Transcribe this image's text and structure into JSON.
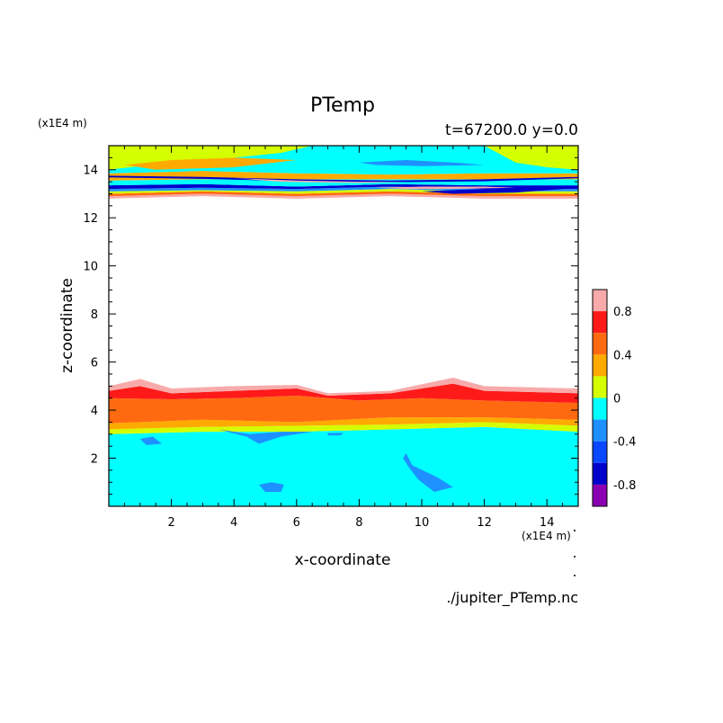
{
  "chart_data": {
    "type": "heatmap",
    "title": "PTemp",
    "subtitle": "t=67200.0 y=0.0",
    "xlabel": "x-coordinate",
    "ylabel": "z-coordinate",
    "x_unit": "(x1E4 m)",
    "y_unit": "(x1E4 m)",
    "file_label": "./jupiter_PTemp.nc",
    "xlim": [
      0,
      15
    ],
    "ylim": [
      0,
      15
    ],
    "x_ticks": [
      2,
      4,
      6,
      8,
      10,
      12,
      14
    ],
    "y_ticks": [
      2,
      4,
      6,
      8,
      10,
      12,
      14
    ],
    "colorbar": {
      "range": [
        -1.0,
        1.0
      ],
      "tick_values": [
        0.8,
        0.4,
        0,
        -0.4,
        -0.8
      ],
      "tick_labels": [
        "0.8",
        "0.4",
        "0",
        "-0.4",
        "-0.8"
      ],
      "levels": [
        {
          "min": 0.8,
          "max": 1.0,
          "color": "#f8aaaa"
        },
        {
          "min": 0.6,
          "max": 0.8,
          "color": "#ff1a1a"
        },
        {
          "min": 0.4,
          "max": 0.6,
          "color": "#ff6a10"
        },
        {
          "min": 0.2,
          "max": 0.4,
          "color": "#ffaa00"
        },
        {
          "min": 0.0,
          "max": 0.2,
          "color": "#d4ff00"
        },
        {
          "min": -0.2,
          "max": 0.0,
          "color": "#00ffff"
        },
        {
          "min": -0.4,
          "max": -0.2,
          "color": "#1e90ff"
        },
        {
          "min": -0.6,
          "max": -0.4,
          "color": "#0a48ff"
        },
        {
          "min": -0.8,
          "max": -0.6,
          "color": "#0000cc"
        },
        {
          "min": -1.0,
          "max": -0.8,
          "color": "#8b00b0"
        }
      ]
    },
    "bands": [
      {
        "level": -0.1,
        "bottom": [
          [
            0,
            0
          ],
          [
            15,
            0
          ]
        ],
        "top": [
          [
            0,
            3.0
          ],
          [
            3,
            3.1
          ],
          [
            6,
            3.1
          ],
          [
            9,
            3.2
          ],
          [
            12,
            3.3
          ],
          [
            15,
            3.1
          ]
        ]
      },
      {
        "level": 0.1,
        "bottom": [
          [
            0,
            3.0
          ],
          [
            3,
            3.1
          ],
          [
            6,
            3.1
          ],
          [
            9,
            3.2
          ],
          [
            12,
            3.3
          ],
          [
            15,
            3.1
          ]
        ],
        "top": [
          [
            0,
            3.2
          ],
          [
            3,
            3.3
          ],
          [
            6,
            3.35
          ],
          [
            9,
            3.4
          ],
          [
            12,
            3.5
          ],
          [
            15,
            3.35
          ]
        ]
      },
      {
        "level": 0.3,
        "bottom": [
          [
            0,
            3.2
          ],
          [
            3,
            3.3
          ],
          [
            6,
            3.35
          ],
          [
            9,
            3.4
          ],
          [
            12,
            3.5
          ],
          [
            15,
            3.35
          ]
        ],
        "top": [
          [
            0,
            3.45
          ],
          [
            3,
            3.6
          ],
          [
            6,
            3.5
          ],
          [
            9,
            3.7
          ],
          [
            12,
            3.7
          ],
          [
            15,
            3.6
          ]
        ]
      },
      {
        "level": 0.5,
        "bottom": [
          [
            0,
            3.45
          ],
          [
            3,
            3.6
          ],
          [
            6,
            3.5
          ],
          [
            9,
            3.7
          ],
          [
            12,
            3.7
          ],
          [
            15,
            3.6
          ]
        ],
        "top": [
          [
            0,
            4.5
          ],
          [
            2,
            4.45
          ],
          [
            4,
            4.5
          ],
          [
            6,
            4.6
          ],
          [
            8,
            4.4
          ],
          [
            10,
            4.5
          ],
          [
            12,
            4.4
          ],
          [
            15,
            4.3
          ]
        ]
      },
      {
        "level": 0.7,
        "bottom": [
          [
            0,
            4.5
          ],
          [
            2,
            4.45
          ],
          [
            4,
            4.5
          ],
          [
            6,
            4.6
          ],
          [
            8,
            4.4
          ],
          [
            10,
            4.5
          ],
          [
            12,
            4.4
          ],
          [
            15,
            4.3
          ]
        ],
        "top": [
          [
            0,
            4.8
          ],
          [
            1,
            5.0
          ],
          [
            2,
            4.7
          ],
          [
            4,
            4.8
          ],
          [
            6,
            4.9
          ],
          [
            7,
            4.6
          ],
          [
            9,
            4.7
          ],
          [
            11,
            5.1
          ],
          [
            12,
            4.8
          ],
          [
            15,
            4.7
          ]
        ]
      },
      {
        "level": 0.9,
        "bottom": [
          [
            0,
            4.8
          ],
          [
            1,
            5.0
          ],
          [
            2,
            4.7
          ],
          [
            4,
            4.8
          ],
          [
            6,
            4.9
          ],
          [
            7,
            4.6
          ],
          [
            9,
            4.7
          ],
          [
            11,
            5.1
          ],
          [
            12,
            4.8
          ],
          [
            15,
            4.7
          ]
        ],
        "top": [
          [
            0,
            5.0
          ],
          [
            1,
            5.3
          ],
          [
            2,
            4.9
          ],
          [
            4,
            5.0
          ],
          [
            6,
            5.05
          ],
          [
            7,
            4.7
          ],
          [
            9,
            4.8
          ],
          [
            11,
            5.35
          ],
          [
            12,
            5.0
          ],
          [
            15,
            4.9
          ]
        ]
      },
      {
        "level": 0.9,
        "bottom": [
          [
            0,
            12.8
          ],
          [
            3,
            12.9
          ],
          [
            6,
            12.8
          ],
          [
            9,
            12.9
          ],
          [
            12,
            12.8
          ],
          [
            15,
            12.8
          ]
        ],
        "top": [
          [
            0,
            12.9
          ],
          [
            3,
            13.0
          ],
          [
            6,
            12.9
          ],
          [
            9,
            13.0
          ],
          [
            12,
            12.9
          ],
          [
            15,
            12.9
          ]
        ]
      },
      {
        "level": 0.5,
        "bottom": [
          [
            0,
            12.9
          ],
          [
            3,
            13.0
          ],
          [
            6,
            12.9
          ],
          [
            9,
            13.0
          ],
          [
            12,
            12.9
          ],
          [
            15,
            12.9
          ]
        ],
        "top": [
          [
            0,
            13.0
          ],
          [
            3,
            13.1
          ],
          [
            6,
            13.0
          ],
          [
            9,
            13.1
          ],
          [
            12,
            13.0
          ],
          [
            15,
            13.0
          ]
        ]
      },
      {
        "level": 0.1,
        "bottom": [
          [
            0,
            13.0
          ],
          [
            3,
            13.1
          ],
          [
            6,
            13.0
          ],
          [
            9,
            13.1
          ],
          [
            12,
            13.0
          ],
          [
            15,
            13.0
          ]
        ],
        "top": [
          [
            0,
            13.1
          ],
          [
            3,
            13.15
          ],
          [
            6,
            13.1
          ],
          [
            9,
            13.2
          ],
          [
            12,
            13.1
          ],
          [
            15,
            13.1
          ]
        ]
      },
      {
        "level": -0.3,
        "bottom": [
          [
            0,
            13.1
          ],
          [
            3,
            13.15
          ],
          [
            6,
            13.1
          ],
          [
            9,
            13.2
          ],
          [
            12,
            13.1
          ],
          [
            15,
            13.1
          ]
        ],
        "top": [
          [
            0,
            13.2
          ],
          [
            3,
            13.25
          ],
          [
            6,
            13.2
          ],
          [
            9,
            13.3
          ],
          [
            12,
            13.2
          ],
          [
            15,
            13.2
          ]
        ]
      },
      {
        "level": -0.7,
        "bottom": [
          [
            0,
            13.2
          ],
          [
            3,
            13.25
          ],
          [
            6,
            13.2
          ],
          [
            9,
            13.3
          ],
          [
            12,
            13.2
          ],
          [
            15,
            13.2
          ]
        ],
        "top": [
          [
            0,
            13.35
          ],
          [
            3,
            13.4
          ],
          [
            6,
            13.3
          ],
          [
            9,
            13.4
          ],
          [
            12,
            13.35
          ],
          [
            15,
            13.35
          ]
        ]
      },
      {
        "level": -0.1,
        "bottom": [
          [
            0,
            13.35
          ],
          [
            3,
            13.4
          ],
          [
            6,
            13.3
          ],
          [
            9,
            13.4
          ],
          [
            12,
            13.35
          ],
          [
            15,
            13.35
          ]
        ],
        "top": [
          [
            0,
            13.55
          ],
          [
            3,
            13.6
          ],
          [
            6,
            13.6
          ],
          [
            9,
            13.6
          ],
          [
            12,
            13.6
          ],
          [
            15,
            13.6
          ]
        ]
      },
      {
        "level": 0.3,
        "bottom": [
          [
            0,
            13.55
          ],
          [
            3,
            13.6
          ],
          [
            6,
            13.6
          ],
          [
            9,
            13.6
          ],
          [
            12,
            13.6
          ],
          [
            15,
            13.6
          ]
        ],
        "top": [
          [
            0,
            13.85
          ],
          [
            3,
            13.95
          ],
          [
            6,
            13.85
          ],
          [
            9,
            13.8
          ],
          [
            12,
            13.85
          ],
          [
            15,
            13.85
          ]
        ]
      },
      {
        "level": -0.1,
        "bottom": [
          [
            0,
            13.85
          ],
          [
            3,
            13.95
          ],
          [
            6,
            13.85
          ],
          [
            9,
            13.8
          ],
          [
            12,
            13.85
          ],
          [
            15,
            13.85
          ]
        ],
        "top": [
          [
            0,
            15
          ],
          [
            15,
            15
          ]
        ]
      }
    ],
    "patches": [
      {
        "level": 0.1,
        "points": [
          [
            0,
            14.0
          ],
          [
            2,
            14.3
          ],
          [
            4,
            14.5
          ],
          [
            5.5,
            14.7
          ],
          [
            6.5,
            15
          ],
          [
            0,
            15
          ]
        ]
      },
      {
        "level": 0.3,
        "points": [
          [
            0.5,
            14.2
          ],
          [
            2,
            14.4
          ],
          [
            4,
            14.5
          ],
          [
            6,
            14.4
          ],
          [
            4,
            14.1
          ],
          [
            1.5,
            14.0
          ]
        ]
      },
      {
        "level": 0.1,
        "points": [
          [
            12,
            15
          ],
          [
            13,
            14.3
          ],
          [
            14,
            14.1
          ],
          [
            15,
            14.0
          ],
          [
            15,
            15
          ]
        ]
      },
      {
        "level": -0.3,
        "points": [
          [
            8,
            14.3
          ],
          [
            9.5,
            14.4
          ],
          [
            11,
            14.3
          ],
          [
            12,
            14.2
          ],
          [
            10,
            14.15
          ],
          [
            8.5,
            14.2
          ]
        ]
      },
      {
        "level": -0.3,
        "points": [
          [
            1.0,
            2.8
          ],
          [
            1.4,
            2.9
          ],
          [
            1.7,
            2.6
          ],
          [
            1.2,
            2.55
          ]
        ]
      },
      {
        "level": -0.3,
        "points": [
          [
            3.5,
            3.2
          ],
          [
            4.5,
            3.0
          ],
          [
            5.5,
            3.1
          ],
          [
            6.5,
            3.1
          ],
          [
            5.5,
            2.9
          ],
          [
            4.8,
            2.6
          ],
          [
            4.4,
            2.9
          ]
        ]
      },
      {
        "level": -0.3,
        "points": [
          [
            9.5,
            2.2
          ],
          [
            9.7,
            1.7
          ],
          [
            10.5,
            1.2
          ],
          [
            11,
            0.8
          ],
          [
            10.4,
            0.6
          ],
          [
            9.9,
            1.1
          ],
          [
            9.6,
            1.6
          ],
          [
            9.4,
            2.0
          ]
        ]
      },
      {
        "level": -0.3,
        "points": [
          [
            4.8,
            0.9
          ],
          [
            5.2,
            1.0
          ],
          [
            5.6,
            0.9
          ],
          [
            5.5,
            0.6
          ],
          [
            5.0,
            0.6
          ]
        ]
      },
      {
        "level": -0.3,
        "points": [
          [
            7.0,
            3.05
          ],
          [
            7.5,
            3.05
          ],
          [
            7.4,
            2.95
          ],
          [
            7.0,
            2.95
          ]
        ]
      },
      {
        "level": -0.7,
        "points": [
          [
            0,
            13.75
          ],
          [
            3,
            13.7
          ],
          [
            6,
            13.6
          ],
          [
            9,
            13.55
          ],
          [
            12,
            13.6
          ],
          [
            15,
            13.7
          ],
          [
            15,
            13.65
          ],
          [
            12,
            13.52
          ],
          [
            9,
            13.48
          ],
          [
            6,
            13.52
          ],
          [
            3,
            13.62
          ],
          [
            0,
            13.68
          ]
        ]
      },
      {
        "level": -0.7,
        "points": [
          [
            10,
            13.1
          ],
          [
            12,
            13.2
          ],
          [
            14,
            13.3
          ],
          [
            15,
            13.25
          ],
          [
            13,
            13.05
          ],
          [
            11,
            13.0
          ]
        ]
      },
      {
        "level": 0.9,
        "points": [
          [
            4,
            13.65
          ],
          [
            6,
            13.55
          ],
          [
            8,
            13.5
          ],
          [
            9.5,
            13.5
          ],
          [
            8,
            13.45
          ],
          [
            5.5,
            13.5
          ]
        ]
      },
      {
        "level": 0.9,
        "points": [
          [
            8.5,
            13.25
          ],
          [
            10,
            13.3
          ],
          [
            12,
            13.3
          ],
          [
            13,
            13.25
          ],
          [
            11,
            13.2
          ],
          [
            9.5,
            13.2
          ]
        ]
      }
    ]
  }
}
